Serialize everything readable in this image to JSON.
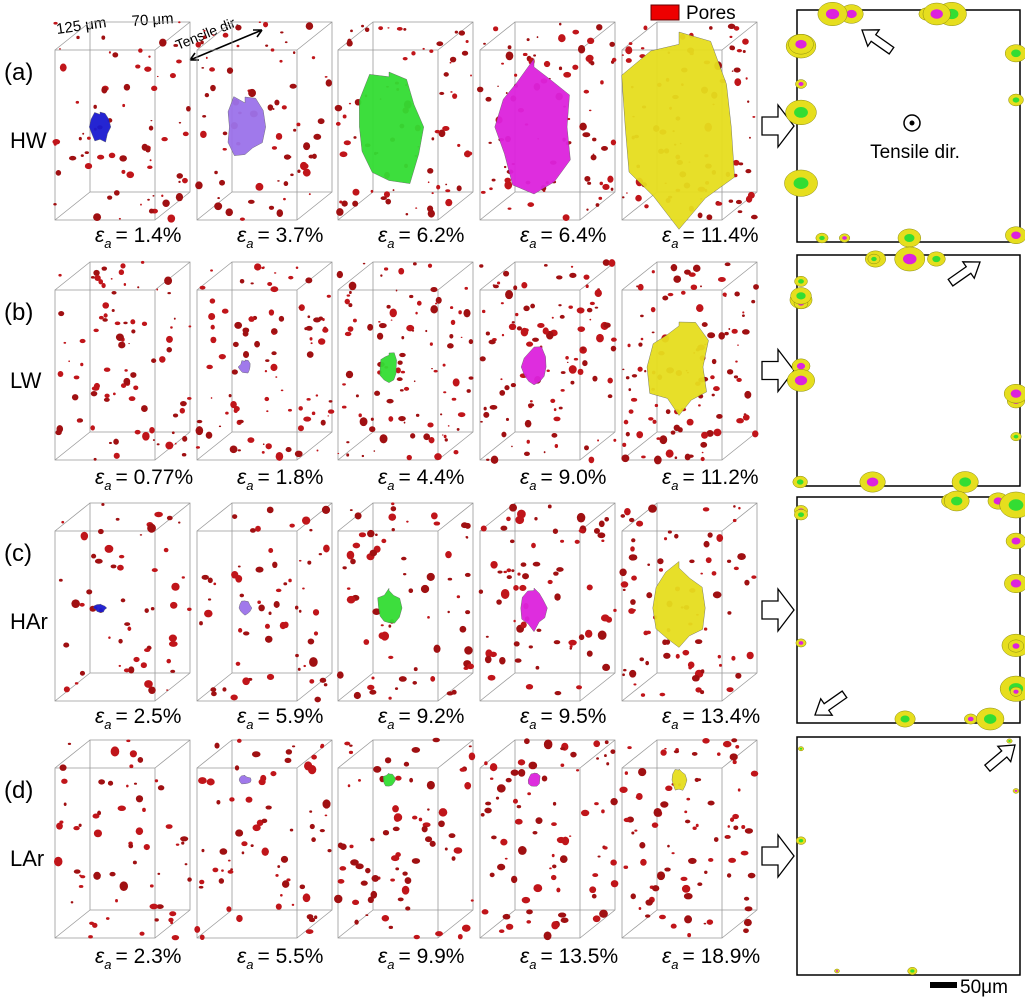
{
  "strain_symbol": "ε",
  "strain_subscript": "a",
  "annotations": {
    "depth": "125 μm",
    "width": "70 μm",
    "tensile_dir": "Tensile dir.",
    "legend": "Pores",
    "cross_section_dir": "Tensile dir.",
    "scale_bar": "50μm"
  },
  "panels": [
    {
      "label": "(a)",
      "material": "HW",
      "strains": [
        "= 1.4%",
        "= 3.7%",
        "= 6.2%",
        "= 6.4%",
        "= 11.4%"
      ]
    },
    {
      "label": "(b)",
      "material": "LW",
      "strains": [
        "= 0.77%",
        "= 1.8%",
        "= 4.4%",
        "= 9.0%",
        "= 11.2%"
      ]
    },
    {
      "label": "(c)",
      "material": "HAr",
      "strains": [
        "= 2.5%",
        "= 5.9%",
        "= 9.2%",
        "= 9.5%",
        "= 13.4%"
      ]
    },
    {
      "label": "(d)",
      "material": "LAr",
      "strains": [
        "= 2.3%",
        "= 5.5%",
        "= 9.9%",
        "= 13.5%",
        "= 18.9%"
      ]
    }
  ]
}
